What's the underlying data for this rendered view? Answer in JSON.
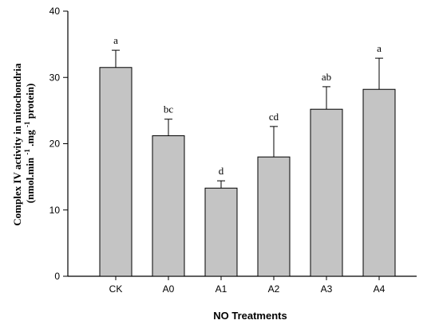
{
  "chart_data": {
    "type": "bar",
    "categories": [
      "CK",
      "A0",
      "A1",
      "A2",
      "A3",
      "A4"
    ],
    "values": [
      31.5,
      21.2,
      13.3,
      18.0,
      25.2,
      28.2
    ],
    "errors": [
      2.6,
      2.5,
      1.1,
      4.6,
      3.4,
      4.7
    ],
    "significance_letters": [
      "a",
      "bc",
      "d",
      "cd",
      "ab",
      "a"
    ],
    "xlabel": "NO Treatments",
    "ylabel_line1": "Complex IV activity in mitochondria",
    "ylabel_line2_parts": [
      "(nmol.min",
      "-1",
      ".mg",
      "-1",
      " protein)"
    ],
    "ylim": [
      0,
      40
    ],
    "yticks": [
      0,
      10,
      20,
      30,
      40
    ],
    "grid": false,
    "colors": {
      "bar_fill": "#c4c4c4",
      "bar_edge": "#000000"
    }
  }
}
